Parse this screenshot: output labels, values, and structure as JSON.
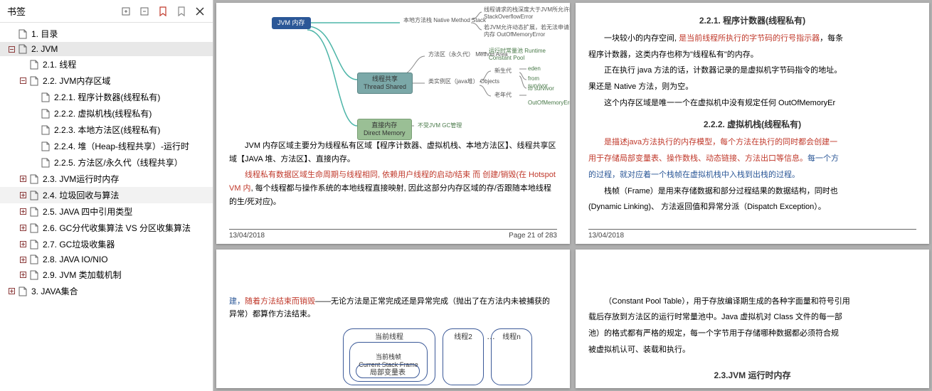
{
  "sidebar": {
    "title": "书签",
    "items": [
      {
        "label": "1. 目录",
        "indent": 0,
        "toggle": "empty",
        "selected": false
      },
      {
        "label": "2. JVM",
        "indent": 0,
        "toggle": "minus",
        "selected": true
      },
      {
        "label": "2.1. 线程",
        "indent": 1,
        "toggle": "empty",
        "selected": false
      },
      {
        "label": "2.2. JVM内存区域",
        "indent": 1,
        "toggle": "minus",
        "selected": false
      },
      {
        "label": "2.2.1. 程序计数器(线程私有)",
        "indent": 2,
        "toggle": "none",
        "selected": false
      },
      {
        "label": "2.2.2. 虚拟机栈(线程私有)",
        "indent": 2,
        "toggle": "none",
        "selected": false
      },
      {
        "label": "2.2.3. 本地方法区(线程私有)",
        "indent": 2,
        "toggle": "none",
        "selected": false
      },
      {
        "label": "2.2.4. 堆（Heap-线程共享）-运行时",
        "indent": 2,
        "toggle": "none",
        "selected": false
      },
      {
        "label": "2.2.5. 方法区/永久代（线程共享）",
        "indent": 2,
        "toggle": "none",
        "selected": false
      },
      {
        "label": "2.3. JVM运行时内存",
        "indent": 1,
        "toggle": "plus",
        "selected": false
      },
      {
        "label": "2.4. 垃圾回收与算法",
        "indent": 1,
        "toggle": "plus",
        "selected": false,
        "hover": true
      },
      {
        "label": "2.5. JAVA 四中引用类型",
        "indent": 1,
        "toggle": "plus",
        "selected": false
      },
      {
        "label": "2.6. GC分代收集算法  VS  分区收集算法",
        "indent": 1,
        "toggle": "plus",
        "selected": false
      },
      {
        "label": "2.7. GC垃圾收集器",
        "indent": 1,
        "toggle": "plus",
        "selected": false
      },
      {
        "label": "2.8.  JAVA IO/NIO",
        "indent": 1,
        "toggle": "plus",
        "selected": false
      },
      {
        "label": "2.9. JVM 类加载机制",
        "indent": 1,
        "toggle": "plus",
        "selected": false
      },
      {
        "label": "3. JAVA集合",
        "indent": 0,
        "toggle": "plus",
        "selected": false
      }
    ]
  },
  "page1": {
    "jvm_node": "JVM 内存",
    "thread_shared": "线程共享\nThread Shared",
    "direct_memory": "直接内存\nDirect Memory",
    "native_stack": "本地方法栈\nNative Method Stack",
    "method_area": "方法区（永久代）\nMethod Area",
    "objects": "类实例区（java堆）\nObjects",
    "runtime_pool": "运行时常量池\nRuntime Constant Pool",
    "eden": "eden",
    "new_gen": "新生代",
    "from_surv": "from survivor",
    "to_surv": "to survivor",
    "old_gen": "老年代",
    "oom": "OutOfMemoryError",
    "no_gc": "不受JVM GC管理",
    "stack_overflow": "线程请求的栈深度大于JVM所允许的深度\nStackOverflowError",
    "jvm_extend": "若JVM允许动态扩展，若无法申请到足够内存\nOutOfMemoryError",
    "para1": "JVM 内存区域主要分为线程私有区域【程序计数器、虚拟机栈、本地方法区】、线程共享区域【JAVA 堆、方法区】、直接内存。",
    "para2_a": "线程私有数据区域生命周期与线程相同, 依赖用户线程的启动/结束 而 创建/销毁(在 Hotspot VM 内",
    "para2_b": ", 每个线程都与操作系统的本地线程直接映射, 因此这部分内存区域的存/否跟随本地线程的生/死对应)。",
    "date": "13/04/2018",
    "page_num": "Page 21 of 283"
  },
  "page2": {
    "sec1_title": "2.2.1.  程序计数器(线程私有)",
    "sec1_p1_a": "一块较小的内存空间, ",
    "sec1_p1_b": "是当前线程所执行的字节码的行号指示器",
    "sec1_p1_c": "，每条",
    "sec1_p2": "程序计数器，这类内存也称为\"线程私有\"的内存。",
    "sec1_p3": "正在执行 java  方法的话，计数器记录的是虚拟机字节码指令的地址。",
    "sec1_p4": "果还是 Native 方法，则为空。",
    "sec1_p5": "这个内存区域是唯一一个在虚拟机中没有规定任何 OutOfMemoryEr",
    "sec2_title": "2.2.2.  虚拟机栈(线程私有)",
    "sec2_p1_a": "是描述java方法执行的内存模型，每个方法在执行的同时都会创建一",
    "sec2_p1_b": "用于存储局部变量表、操作数栈、动态链接、方法出口等信息。",
    "sec2_p1_c": "每一个方",
    "sec2_p1_d": "的过程，就对应着一个栈帧在虚拟机栈中入栈到出栈的过程。",
    "sec2_p2": "栈帧（Frame）是用来存储数据和部分过程结果的数据结构，同时也",
    "sec2_p3": "(Dynamic Linking)、 方法返回值和异常分派（Dispatch Exception）。",
    "date": "13/04/2018"
  },
  "page3": {
    "p1_a": "建，",
    "p1_b": "随着方法结束而销毁",
    "p1_c": "——无论方法是正常完成还是异常完成（抛出了在方法内未被捕获的异常）都算作方法结束。",
    "current_thread": "当前线程",
    "current_frame": "当前栈帧\nCurrent Stack Frame",
    "local_vars": "局部变量表",
    "thread2": "线程2",
    "threadn": "线程n"
  },
  "page4": {
    "p1": "（Constant Pool Table），用于存放编译期生成的各种字面量和符号引用",
    "p2": "载后存放到方法区的运行时常量池中。Java 虚拟机对 Class 文件的每一部",
    "p3": "池）的格式都有严格的规定，每一个字节用于存储哪种数据都必须符合规",
    "p4": "被虚拟机认可、装载和执行。",
    "sec_title": "2.3.JVM 运行时内存"
  },
  "colors": {
    "node_blue": "#2b5797",
    "node_teal": "#7ba8a8",
    "node_green": "#9abf95",
    "red_text": "#c0392b",
    "blue_text": "#2b5797",
    "connector_teal": "#4db5a8"
  }
}
